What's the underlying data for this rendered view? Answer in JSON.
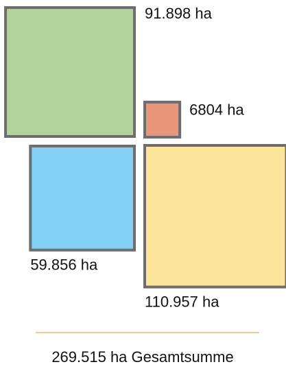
{
  "chart_data": {
    "type": "square-area",
    "values": [
      91898,
      6804,
      59856,
      110957
    ],
    "value_labels": [
      "91.898 ha",
      "6804 ha",
      "59.856 ha",
      "110.957 ha"
    ],
    "colors": [
      "#b2d39c",
      "#e8957a",
      "#82cff5",
      "#fde59b"
    ],
    "total_label": "269.515 ha Gesamtsumme"
  }
}
